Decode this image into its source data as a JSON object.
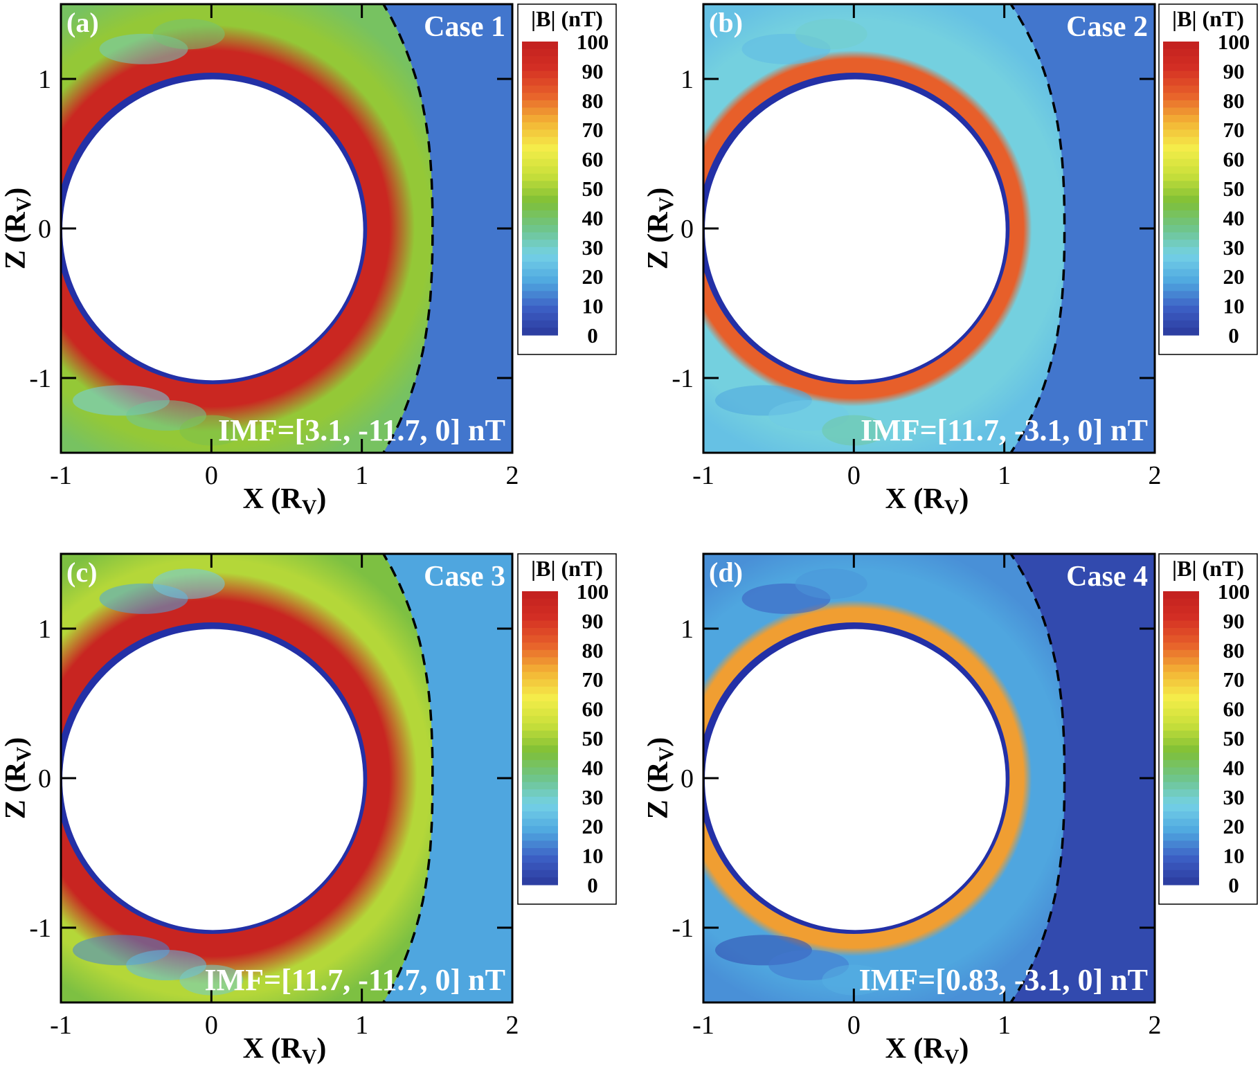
{
  "colors": {
    "colormap": [
      "#2b3a9c",
      "#3c5fc4",
      "#4fa7e0",
      "#74d1e6",
      "#6fc58a",
      "#7fbf36",
      "#c9e03a",
      "#f4ed4a",
      "#f3b235",
      "#e7602a",
      "#d42f24",
      "#c2201f"
    ],
    "ring_blue": "#2330a6",
    "bowshock": "#000000"
  },
  "chart_data": [
    {
      "type": "heatmap",
      "panel": "(a)",
      "case_label": "Case 1",
      "annotation": "IMF=[3.1, -11.7, 0] nT",
      "imf_nT": [
        3.1,
        -11.7,
        0
      ],
      "xlabel": "X (R",
      "xlabel_sub": "V",
      "xlabel_end": ")",
      "ylabel": "Z (R",
      "ylabel_sub": "V",
      "ylabel_end": ")",
      "x_ticks": [
        "-1",
        "0",
        "1",
        "2"
      ],
      "y_ticks": [
        "1",
        "0",
        "-1"
      ],
      "xlim": [
        -1,
        2
      ],
      "ylim": [
        -1.5,
        1.5
      ],
      "colorbar_title": "|B| (nT)",
      "colorbar_ticks": [
        "100",
        "90",
        "80",
        "70",
        "60",
        "50",
        "40",
        "30",
        "20",
        "10",
        "0"
      ],
      "colorbar_range": [
        0,
        100
      ],
      "field": {
        "solar_wind_B": 12,
        "sheath_B": 48,
        "pileup_peak_B": 96,
        "pileup_width": 0.1,
        "bowshock_x": 1.47,
        "wake_B": 35
      }
    },
    {
      "type": "heatmap",
      "panel": "(b)",
      "case_label": "Case 2",
      "annotation": "IMF=[11.7, -3.1, 0] nT",
      "imf_nT": [
        11.7,
        -3.1,
        0
      ],
      "xlabel": "X (R",
      "xlabel_sub": "V",
      "xlabel_end": ")",
      "ylabel": "Z (R",
      "ylabel_sub": "V",
      "ylabel_end": ")",
      "x_ticks": [
        "-1",
        "0",
        "1",
        "2"
      ],
      "y_ticks": [
        "1",
        "0",
        "-1"
      ],
      "xlim": [
        -1,
        2
      ],
      "ylim": [
        -1.5,
        1.5
      ],
      "colorbar_title": "|B| (nT)",
      "colorbar_ticks": [
        "100",
        "90",
        "80",
        "70",
        "60",
        "50",
        "40",
        "30",
        "20",
        "10",
        "0"
      ],
      "colorbar_range": [
        0,
        100
      ],
      "field": {
        "solar_wind_B": 12,
        "sheath_B": 28,
        "pileup_peak_B": 82,
        "pileup_width": 0.035,
        "bowshock_x": 1.4,
        "wake_B": 26
      }
    },
    {
      "type": "heatmap",
      "panel": "(c)",
      "case_label": "Case 3",
      "annotation": "IMF=[11.7, -11.7, 0] nT",
      "imf_nT": [
        11.7,
        -11.7,
        0
      ],
      "xlabel": "X (R",
      "xlabel_sub": "V",
      "xlabel_end": ")",
      "ylabel": "Z (R",
      "ylabel_sub": "V",
      "ylabel_end": ")",
      "x_ticks": [
        "-1",
        "0",
        "1",
        "2"
      ],
      "y_ticks": [
        "1",
        "0",
        "-1"
      ],
      "xlim": [
        -1,
        2
      ],
      "ylim": [
        -1.5,
        1.5
      ],
      "colorbar_title": "|B| (nT)",
      "colorbar_ticks": [
        "100",
        "90",
        "80",
        "70",
        "60",
        "50",
        "40",
        "30",
        "20",
        "10",
        "0"
      ],
      "colorbar_range": [
        0,
        100
      ],
      "field": {
        "solar_wind_B": 18,
        "sheath_B": 52,
        "pileup_peak_B": 97,
        "pileup_width": 0.11,
        "bowshock_x": 1.47,
        "wake_B": 22
      }
    },
    {
      "type": "heatmap",
      "panel": "(d)",
      "case_label": "Case 4",
      "annotation": "IMF=[0.83, -3.1, 0] nT",
      "imf_nT": [
        0.83,
        -3.1,
        0
      ],
      "xlabel": "X (R",
      "xlabel_sub": "V",
      "xlabel_end": ")",
      "ylabel": "Z (R",
      "ylabel_sub": "V",
      "ylabel_end": ")",
      "x_ticks": [
        "-1",
        "0",
        "1",
        "2"
      ],
      "y_ticks": [
        "1",
        "0",
        "-1"
      ],
      "xlim": [
        -1,
        2
      ],
      "ylim": [
        -1.5,
        1.5
      ],
      "colorbar_title": "|B| (nT)",
      "colorbar_ticks": [
        "100",
        "90",
        "80",
        "70",
        "60",
        "50",
        "40",
        "30",
        "20",
        "10",
        "0"
      ],
      "colorbar_range": [
        0,
        100
      ],
      "field": {
        "solar_wind_B": 4,
        "sheath_B": 18,
        "pileup_peak_B": 75,
        "pileup_width": 0.035,
        "bowshock_x": 1.4,
        "wake_B": 12
      }
    }
  ]
}
